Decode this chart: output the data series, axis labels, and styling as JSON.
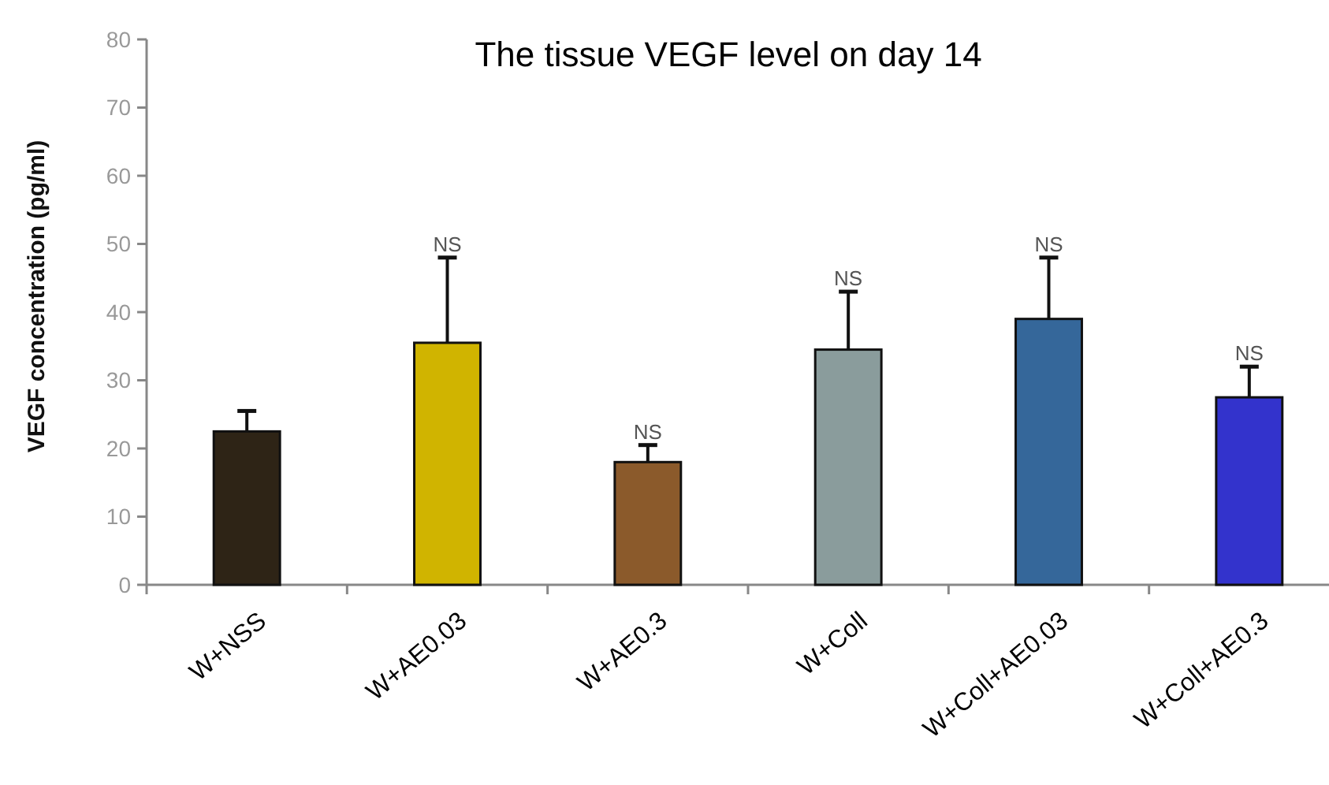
{
  "chart_data": {
    "type": "bar",
    "title": "The tissue VEGF level on day 14",
    "ylabel": "VEGF concentration (pg/ml)",
    "categories": [
      "W+NSS",
      "W+AE0.03",
      "W+AE0.3",
      "W+Coll",
      "W+Coll+AE0.03",
      "W+Coll+AE0.3"
    ],
    "values": [
      22.5,
      35.5,
      18,
      34.5,
      39,
      27.5
    ],
    "colors": [
      "#2e2416",
      "#d0b400",
      "#8b5a2b",
      "#8a9c9c",
      "#35679a",
      "#3333cc"
    ],
    "errors": [
      [
        22.5,
        25.5
      ],
      [
        35.5,
        48
      ],
      [
        18,
        20.5
      ],
      [
        34.5,
        43
      ],
      [
        39,
        48
      ],
      [
        27.5,
        32
      ]
    ],
    "ylim": [
      0,
      80
    ],
    "yticks": [
      0,
      10,
      20,
      30,
      40,
      50,
      60,
      70,
      80
    ],
    "annotations": [
      {
        "text": "NS",
        "x": "W+AE0.03",
        "y": 48
      },
      {
        "text": "NS",
        "x": "W+AE0.3",
        "y": 20.5
      },
      {
        "text": "NS",
        "x": "W+Coll",
        "y": 43
      },
      {
        "text": "NS",
        "x": "W+Coll+AE0.03",
        "y": 48
      },
      {
        "text": "NS",
        "x": "W+Coll+AE0.3",
        "y": 32
      }
    ]
  }
}
